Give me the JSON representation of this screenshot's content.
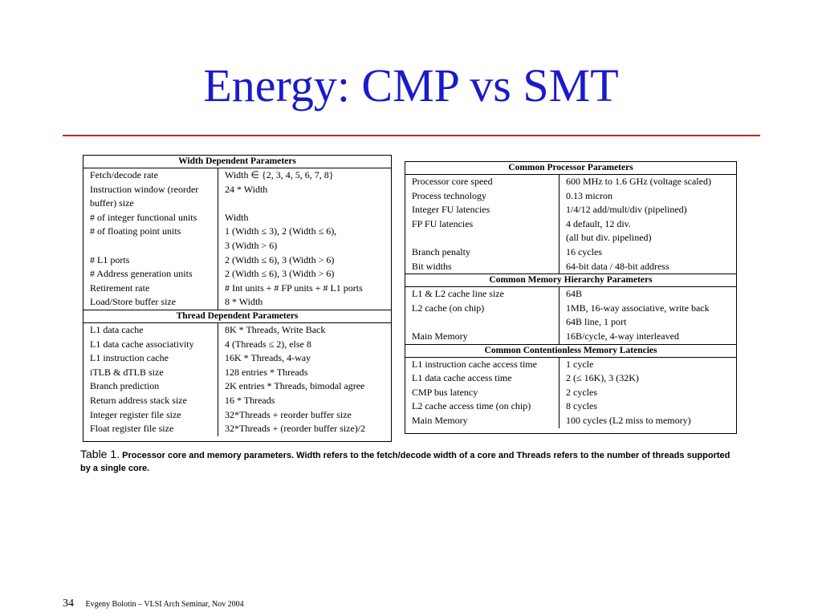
{
  "slide": {
    "title": "Energy: CMP vs SMT",
    "page_number": "34",
    "footer_text": "Evgeny Bolotin – VLSI Arch Seminar, Nov 2004"
  },
  "left_table": {
    "sections": [
      {
        "heading": "Width Dependent Parameters",
        "rows": [
          {
            "param": "Fetch/decode rate",
            "value": "Width ∈ {2, 3, 4, 5, 6, 7, 8}"
          },
          {
            "param": "Instruction window (reorder",
            "value": "24 * Width"
          },
          {
            "param": "buffer) size",
            "value": ""
          },
          {
            "param": "# of integer functional units",
            "value": "Width"
          },
          {
            "param": "# of floating point units",
            "value": "1 (Width ≤ 3), 2 (Width ≤ 6),"
          },
          {
            "param": "",
            "value": "3 (Width > 6)"
          },
          {
            "param": "# L1 ports",
            "value": "2 (Width ≤ 6), 3 (Width > 6)"
          },
          {
            "param": "# Address generation units",
            "value": "2 (Width ≤ 6), 3 (Width > 6)"
          },
          {
            "param": "Retirement rate",
            "value": "# Int units + # FP units + # L1 ports"
          },
          {
            "param": "Load/Store buffer size",
            "value": "8 * Width"
          }
        ]
      },
      {
        "heading": "Thread Dependent Parameters",
        "rows": [
          {
            "param": "L1 data cache",
            "value": "8K * Threads, Write Back"
          },
          {
            "param": "L1 data cache associativity",
            "value": "4 (Threads ≤ 2), else 8"
          },
          {
            "param": "L1 instruction cache",
            "value": "16K * Threads, 4-way"
          },
          {
            "param": "iTLB & dTLB size",
            "value": "128 entries * Threads"
          },
          {
            "param": "Branch prediction",
            "value": "2K entries * Threads, bimodal agree"
          },
          {
            "param": "Return address stack size",
            "value": "16 * Threads"
          },
          {
            "param": "Integer register file size",
            "value": "32*Threads + reorder buffer size"
          },
          {
            "param": "Float register file size",
            "value": "32*Threads + (reorder buffer size)/2"
          }
        ]
      }
    ]
  },
  "right_table": {
    "sections": [
      {
        "heading": "Common Processor Parameters",
        "rows": [
          {
            "param": "Processor core speed",
            "value": "600 MHz to 1.6 GHz (voltage scaled)"
          },
          {
            "param": "Process technology",
            "value": "0.13 micron"
          },
          {
            "param": "Integer FU latencies",
            "value": "1/4/12 add/mult/div (pipelined)"
          },
          {
            "param": "FP FU latencies",
            "value": "4 default, 12 div."
          },
          {
            "param": "",
            "value": "(all but div. pipelined)"
          },
          {
            "param": "Branch penalty",
            "value": "16 cycles"
          },
          {
            "param": "Bit widths",
            "value": "64-bit data / 48-bit address"
          }
        ]
      },
      {
        "heading": "Common Memory Hierarchy Parameters",
        "rows": [
          {
            "param": "L1 & L2 cache line size",
            "value": "64B"
          },
          {
            "param": "L2 cache (on chip)",
            "value": "1MB, 16-way associative, write back"
          },
          {
            "param": "",
            "value": "64B line, 1 port"
          },
          {
            "param": "Main Memory",
            "value": "16B/cycle, 4-way interleaved"
          }
        ]
      },
      {
        "heading": "Common Contentionless Memory Latencies",
        "rows": [
          {
            "param": "L1 instruction cache access time",
            "value": "1 cycle"
          },
          {
            "param": "L1 data cache access time",
            "value": "2 (≤ 16K), 3 (32K)"
          },
          {
            "param": "CMP bus latency",
            "value": "2 cycles"
          },
          {
            "param": "L2 cache access time (on chip)",
            "value": "8 cycles"
          },
          {
            "param": "Main Memory",
            "value": "100 cycles (L2 miss to memory)"
          }
        ]
      }
    ]
  },
  "caption": {
    "label": "Table 1.",
    "text": "Processor core and memory parameters. Width refers to the fetch/decode width of a core and Threads refers to the number of threads supported by a single core."
  }
}
